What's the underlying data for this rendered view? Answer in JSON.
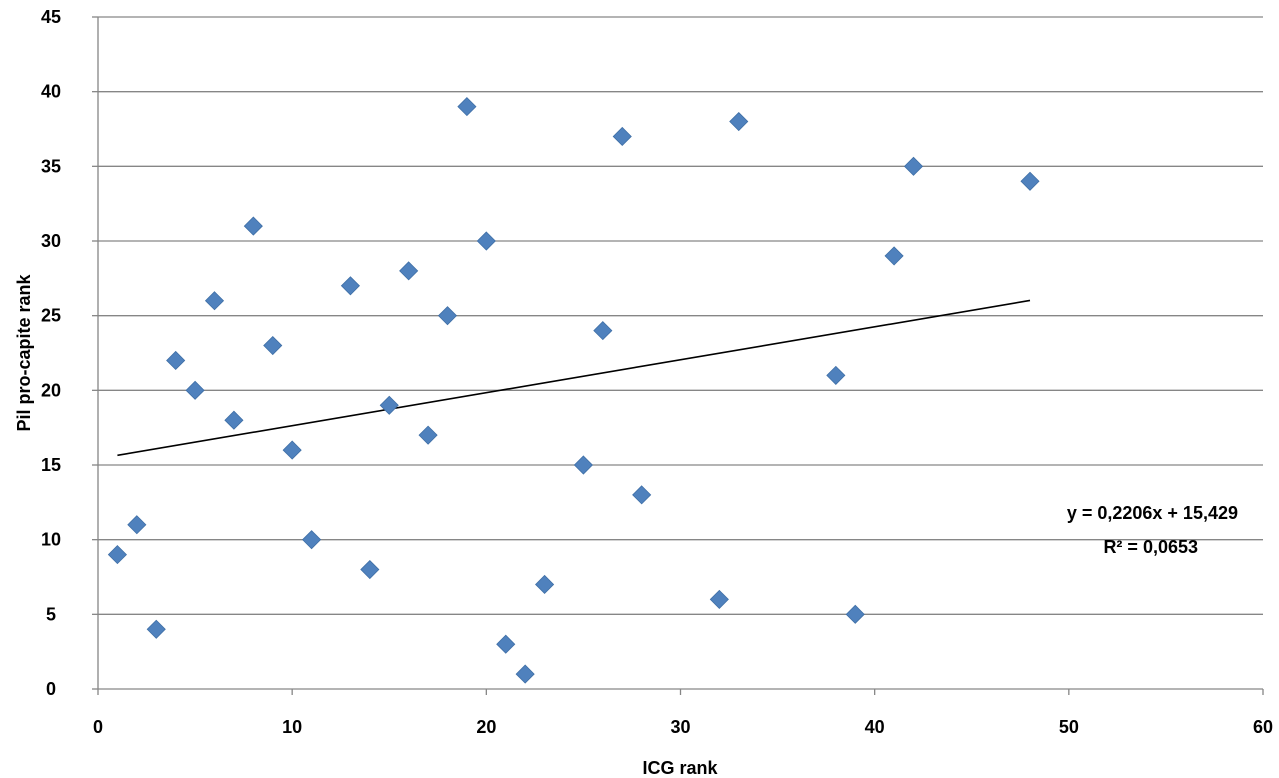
{
  "chart_data": {
    "type": "scatter",
    "xlabel": "ICG rank",
    "ylabel": "Pil pro-capite rank",
    "xlim": [
      0,
      60
    ],
    "ylim": [
      0,
      45
    ],
    "x_ticks": [
      "0",
      "10",
      "20",
      "30",
      "40",
      "50",
      "60"
    ],
    "y_ticks": [
      "0",
      "5",
      "10",
      "15",
      "20",
      "25",
      "30",
      "35",
      "40",
      "45"
    ],
    "grid": "horizontal",
    "legend": "none",
    "marker": "diamond",
    "marker_color": "#4f81bd",
    "points": [
      [
        1,
        9
      ],
      [
        2,
        11
      ],
      [
        3,
        4
      ],
      [
        4,
        22
      ],
      [
        5,
        20
      ],
      [
        6,
        26
      ],
      [
        7,
        18
      ],
      [
        8,
        31
      ],
      [
        9,
        23
      ],
      [
        10,
        16
      ],
      [
        11,
        10
      ],
      [
        13,
        27
      ],
      [
        14,
        8
      ],
      [
        15,
        19
      ],
      [
        16,
        28
      ],
      [
        17,
        17
      ],
      [
        18,
        25
      ],
      [
        19,
        39
      ],
      [
        20,
        30
      ],
      [
        21,
        3
      ],
      [
        22,
        1
      ],
      [
        23,
        7
      ],
      [
        25,
        15
      ],
      [
        26,
        24
      ],
      [
        27,
        37
      ],
      [
        28,
        13
      ],
      [
        32,
        6
      ],
      [
        33,
        38
      ],
      [
        38,
        21
      ],
      [
        39,
        5
      ],
      [
        41,
        29
      ],
      [
        42,
        35
      ],
      [
        48,
        34
      ]
    ],
    "trendline": {
      "type": "linear",
      "slope": 0.2206,
      "intercept": 15.429,
      "x_range": [
        1,
        48
      ],
      "equation_text": "y = 0,2206x + 15,429",
      "r2_text": "R² = 0,0653"
    }
  }
}
